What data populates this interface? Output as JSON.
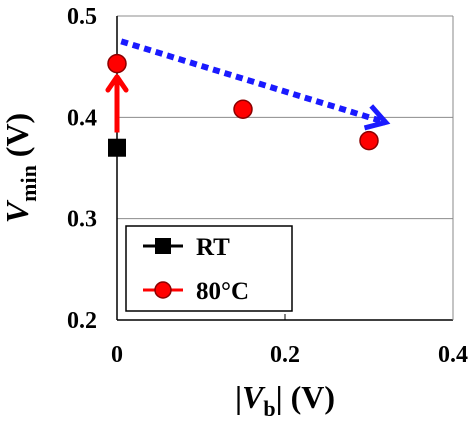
{
  "chart_data": {
    "type": "scatter",
    "xlabel_parts": {
      "bar_left": "|",
      "var": "V",
      "sub": "b",
      "bar_right": "|",
      "unit": " (V)"
    },
    "ylabel_parts": {
      "var": "V",
      "sub": "min",
      "unit": " (V)"
    },
    "xlim": [
      0,
      0.4
    ],
    "ylim": [
      0.2,
      0.5
    ],
    "x_ticks": [
      {
        "value": 0,
        "label": "0"
      },
      {
        "value": 0.2,
        "label": "0.2"
      },
      {
        "value": 0.4,
        "label": "0.4"
      }
    ],
    "y_ticks": [
      {
        "value": 0.2,
        "label": "0.2"
      },
      {
        "value": 0.3,
        "label": "0.3"
      },
      {
        "value": 0.4,
        "label": "0.4"
      },
      {
        "value": 0.5,
        "label": "0.5"
      }
    ],
    "grid": "horizontal",
    "legend_position": "bottom-left",
    "series": [
      {
        "name": "RT",
        "marker": "square",
        "color": "#000000",
        "points": [
          {
            "x": 0,
            "y": 0.37
          }
        ]
      },
      {
        "name": "80°C",
        "marker": "circle",
        "color": "#ff0000",
        "edge": "#8b0000",
        "points": [
          {
            "x": 0,
            "y": 0.453
          },
          {
            "x": 0.15,
            "y": 0.408
          },
          {
            "x": 0.3,
            "y": 0.377
          }
        ]
      }
    ],
    "annotations": [
      {
        "type": "solid-arrow",
        "color": "#ff0000",
        "from": {
          "x": 0,
          "y": 0.385
        },
        "to": {
          "x": 0,
          "y": 0.44
        }
      },
      {
        "type": "dotted-arrow",
        "color": "#1a1aff",
        "from": {
          "x": 0.005,
          "y": 0.475
        },
        "to": {
          "x": 0.32,
          "y": 0.395
        }
      }
    ]
  }
}
